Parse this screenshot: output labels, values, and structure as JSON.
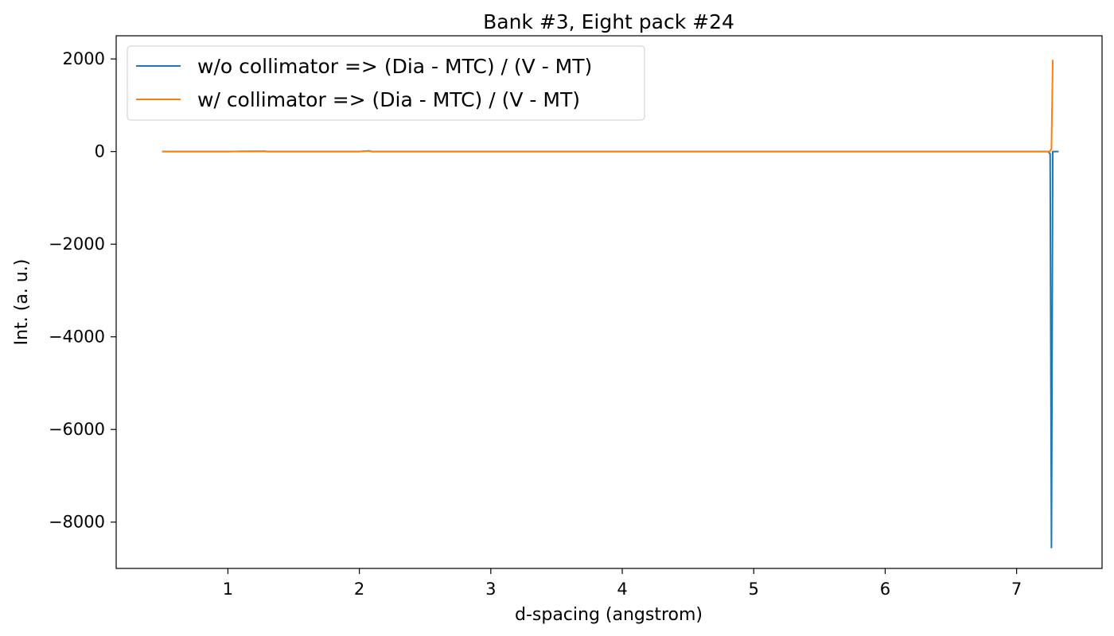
{
  "chart_data": {
    "type": "line",
    "title": "Bank #3, Eight pack #24",
    "xlabel": "d-spacing (angstrom)",
    "ylabel": "Int. (a. u.)",
    "xlim": [
      0.15,
      7.65
    ],
    "ylim": [
      -9000,
      2500
    ],
    "xticks": [
      1,
      2,
      3,
      4,
      5,
      6,
      7
    ],
    "xtick_labels": [
      "1",
      "2",
      "3",
      "4",
      "5",
      "6",
      "7"
    ],
    "yticks": [
      2000,
      0,
      -2000,
      -4000,
      -6000,
      -8000
    ],
    "ytick_labels": [
      "2000",
      "0",
      "−2000",
      "−4000",
      "−6000",
      "−8000"
    ],
    "grid": false,
    "legend_position": "top-left",
    "series": [
      {
        "name": "w/o collimator => (Dia - MTC) / (V - MT)",
        "color": "#1f77b4",
        "x": [
          0.5,
          0.75,
          1.0,
          1.1,
          1.28,
          1.3,
          2.0,
          2.07,
          2.1,
          3.0,
          4.0,
          5.0,
          6.0,
          7.0,
          7.24,
          7.255,
          7.265,
          7.275,
          7.29,
          7.32
        ],
        "y": [
          0,
          0,
          0,
          5,
          8,
          0,
          0,
          15,
          0,
          0,
          0,
          0,
          0,
          0,
          0,
          -50,
          -8550,
          0,
          0,
          0
        ]
      },
      {
        "name": "w/ collimator => (Dia - MTC) / (V - MT)",
        "color": "#ff7f0e",
        "x": [
          0.5,
          0.75,
          1.0,
          1.1,
          1.28,
          1.3,
          2.0,
          2.07,
          2.1,
          3.0,
          4.0,
          5.0,
          6.0,
          7.0,
          7.24,
          7.255,
          7.265,
          7.275
        ],
        "y": [
          0,
          0,
          0,
          5,
          8,
          0,
          0,
          15,
          0,
          0,
          0,
          0,
          0,
          0,
          0,
          10,
          60,
          1980
        ]
      }
    ]
  }
}
